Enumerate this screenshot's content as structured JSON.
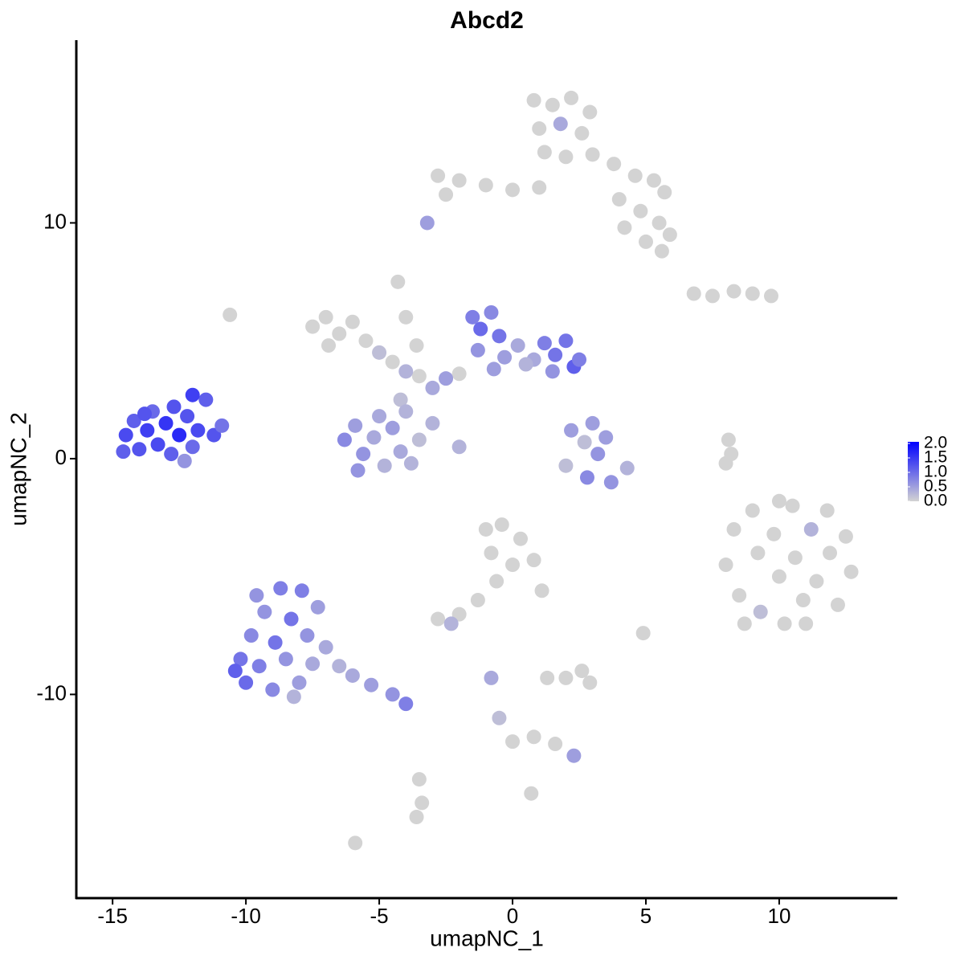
{
  "chart_data": {
    "type": "scatter",
    "title": "Abcd2",
    "xlabel": "umapNC_1",
    "ylabel": "umapNC_2",
    "xlim": [
      -16.36,
      14.43
    ],
    "ylim": [
      -18.64,
      17.75
    ],
    "xticks": [
      -15,
      -10,
      -5,
      0,
      5,
      10
    ],
    "yticks": [
      -10,
      0,
      10
    ],
    "colorbar": {
      "lim": [
        0,
        2
      ],
      "low": "#d3d3d3",
      "high": "#0000ff",
      "ticks": [
        {
          "value": 0,
          "label": "0.0"
        },
        {
          "value": 0.5,
          "label": "0.5"
        },
        {
          "value": 1,
          "label": "1.0"
        },
        {
          "value": 1.5,
          "label": "1.5"
        },
        {
          "value": 2,
          "label": "2.0"
        }
      ]
    },
    "x": [
      -14.5,
      -14.2,
      -14.0,
      -13.7,
      -13.5,
      -13.3,
      -13.0,
      -12.8,
      -12.7,
      -12.5,
      -12.2,
      -12.0,
      -11.8,
      -11.5,
      -11.2,
      -10.9,
      -12.3,
      -13.8,
      -14.6,
      -12.0,
      -10.2,
      -10.0,
      -9.8,
      -9.5,
      -9.3,
      -9.0,
      -8.9,
      -8.7,
      -8.5,
      -8.3,
      -8.0,
      -7.9,
      -7.7,
      -7.5,
      -7.3,
      -7.0,
      -6.5,
      -6.0,
      -5.3,
      -4.5,
      -4.0,
      -9.6,
      -10.4,
      -8.2,
      -1.5,
      -1.2,
      -0.8,
      -0.5,
      -1.3,
      -0.3,
      0.2,
      0.8,
      1.2,
      1.6,
      2.0,
      2.3,
      1.5,
      -0.7,
      2.5,
      0.5,
      -7.5,
      -7.0,
      -6.5,
      -6.0,
      -5.5,
      -5.0,
      -4.5,
      -4.0,
      -3.5,
      -3.0,
      -2.5,
      -2.0,
      -4.3,
      -4.0,
      -3.6,
      -4.2,
      -3.0,
      -2.0,
      -6.9,
      -6.3,
      -5.9,
      -5.6,
      -5.2,
      -4.8,
      -4.5,
      -4.2,
      -3.8,
      -3.5,
      -5.8,
      -4.0,
      -5.0,
      2.2,
      2.7,
      3.2,
      3.5,
      2.0,
      2.8,
      3.7,
      4.3,
      3.0,
      0.8,
      1.5,
      2.2,
      2.9,
      1.0,
      1.8,
      2.6,
      1.2,
      2.0,
      3.0,
      3.8,
      4.6,
      5.3,
      5.7,
      4.0,
      4.8,
      5.5,
      4.2,
      5.0,
      5.9,
      1.0,
      0.0,
      -1.0,
      -2.0,
      -2.8,
      -2.5,
      5.6,
      8.0,
      8.3,
      8.5,
      9.0,
      9.2,
      9.3,
      9.8,
      10.0,
      10.2,
      10.5,
      10.6,
      10.9,
      11.2,
      11.4,
      11.8,
      11.9,
      12.2,
      12.5,
      12.7,
      8.7,
      11.0,
      10.0,
      -1.0,
      -0.4,
      0.3,
      0.8,
      -0.8,
      0.0,
      -0.6,
      1.1,
      -1.3,
      -2.0,
      -2.8,
      -2.3,
      6.8,
      7.5,
      8.3,
      9.0,
      9.7,
      8.1,
      8.0,
      8.2,
      2.0,
      2.6,
      2.9,
      1.3,
      -0.8,
      -0.5,
      0.0,
      0.8,
      1.6,
      2.3,
      -3.5,
      -3.4,
      -3.6,
      -5.9,
      4.9,
      -3.2,
      -10.6,
      0.7
    ],
    "values": [
      1.0,
      1.6,
      0.4,
      1.2,
      2.0,
      0.6,
      1.5,
      0.2,
      2.2,
      1.0,
      1.8,
      0.5,
      1.2,
      2.5,
      1.0,
      1.4,
      -0.1,
      1.9,
      0.3,
      2.7,
      -8.5,
      -9.5,
      -7.5,
      -8.8,
      -6.5,
      -9.8,
      -7.8,
      -5.5,
      -8.5,
      -6.8,
      -9.5,
      -5.6,
      -7.5,
      -8.7,
      -6.3,
      -8.0,
      -8.8,
      -9.2,
      -9.6,
      -10.0,
      -10.4,
      -5.8,
      -9.0,
      -10.1,
      6.0,
      5.5,
      6.2,
      5.2,
      4.6,
      4.3,
      4.8,
      4.2,
      4.9,
      4.4,
      5.0,
      3.9,
      3.7,
      3.8,
      4.2,
      4.0,
      5.6,
      6.0,
      5.3,
      5.8,
      5.0,
      4.5,
      4.1,
      3.7,
      3.5,
      3.0,
      3.4,
      3.6,
      7.5,
      6.0,
      4.8,
      2.5,
      1.5,
      0.5,
      4.8,
      0.8,
      1.4,
      0.2,
      0.9,
      -0.3,
      1.3,
      0.3,
      -0.2,
      0.8,
      -0.5,
      2.0,
      1.8,
      1.2,
      0.7,
      0.2,
      0.9,
      -0.3,
      -0.8,
      -1.0,
      -0.4,
      1.5,
      15.2,
      15.0,
      15.3,
      14.7,
      14.0,
      14.2,
      13.8,
      13.0,
      12.8,
      12.9,
      12.5,
      12.0,
      11.8,
      11.3,
      11.0,
      10.5,
      10.0,
      9.8,
      9.2,
      9.5,
      11.5,
      11.4,
      11.6,
      11.8,
      12.0,
      11.2,
      8.8,
      -4.5,
      -3.0,
      -5.8,
      -2.2,
      -4.0,
      -6.5,
      -3.2,
      -5.0,
      -7.0,
      -2.0,
      -4.2,
      -6.0,
      -3.0,
      -5.2,
      -2.2,
      -4.0,
      -6.2,
      -3.3,
      -4.8,
      -7.0,
      -7.0,
      -1.8,
      -3.0,
      -2.8,
      -3.4,
      -4.3,
      -4.0,
      -4.5,
      -5.2,
      -5.6,
      -6.0,
      -6.6,
      -6.8,
      -7.0,
      7.0,
      6.9,
      7.1,
      7.0,
      6.9,
      0.8,
      -0.2,
      0.2,
      -9.3,
      -9.0,
      -9.5,
      -9.3,
      -9.3,
      -11.0,
      -12.0,
      -11.8,
      -12.1,
      -12.6,
      -13.6,
      -14.6,
      -15.2,
      -16.3,
      -7.4,
      10.0,
      6.1,
      -14.2
    ],
    "expression": [
      1.3,
      1.1,
      1.2,
      1.4,
      1.0,
      1.3,
      1.5,
      1.1,
      1.2,
      1.6,
      1.2,
      1.0,
      1.3,
      1.1,
      1.2,
      0.9,
      0.6,
      1.2,
      1.1,
      1.4,
      0.9,
      1.0,
      0.7,
      0.8,
      0.6,
      0.7,
      0.9,
      0.8,
      0.6,
      0.9,
      0.5,
      0.8,
      0.6,
      0.4,
      0.5,
      0.4,
      0.3,
      0.4,
      0.5,
      0.6,
      0.8,
      0.6,
      1.1,
      0.3,
      0.8,
      1.0,
      0.7,
      0.9,
      0.6,
      0.5,
      0.4,
      0.4,
      0.8,
      0.9,
      0.9,
      1.1,
      0.6,
      0.5,
      0.8,
      0.3,
      0,
      0,
      0,
      0,
      0,
      0.2,
      0,
      0.3,
      0,
      0.4,
      0.5,
      0,
      0,
      0,
      0,
      0.2,
      0.3,
      0.3,
      0,
      0.7,
      0.5,
      0.6,
      0.4,
      0.3,
      0.5,
      0.4,
      0.3,
      0.2,
      0.6,
      0.3,
      0.4,
      0.5,
      0.2,
      0.6,
      0.5,
      0.2,
      0.7,
      0.6,
      0.3,
      0.5,
      0,
      0,
      0,
      0,
      0,
      0.4,
      0,
      0,
      0,
      0,
      0,
      0,
      0,
      0,
      0,
      0,
      0,
      0,
      0,
      0,
      0,
      0,
      0,
      0,
      0,
      0,
      0,
      0,
      0,
      0,
      0,
      0,
      0.2,
      0,
      0,
      0,
      0,
      0,
      0,
      0.3,
      0,
      0,
      0,
      0,
      0,
      0,
      0,
      0,
      0,
      0,
      0,
      0,
      0,
      0,
      0,
      0,
      0,
      0,
      0,
      0,
      0.3,
      0,
      0,
      0,
      0,
      0,
      0,
      0,
      0,
      0,
      0,
      0,
      0,
      0.4,
      0.2,
      0,
      0,
      0,
      0.5,
      0,
      0,
      0,
      0,
      0,
      0.5,
      0,
      0
    ]
  }
}
